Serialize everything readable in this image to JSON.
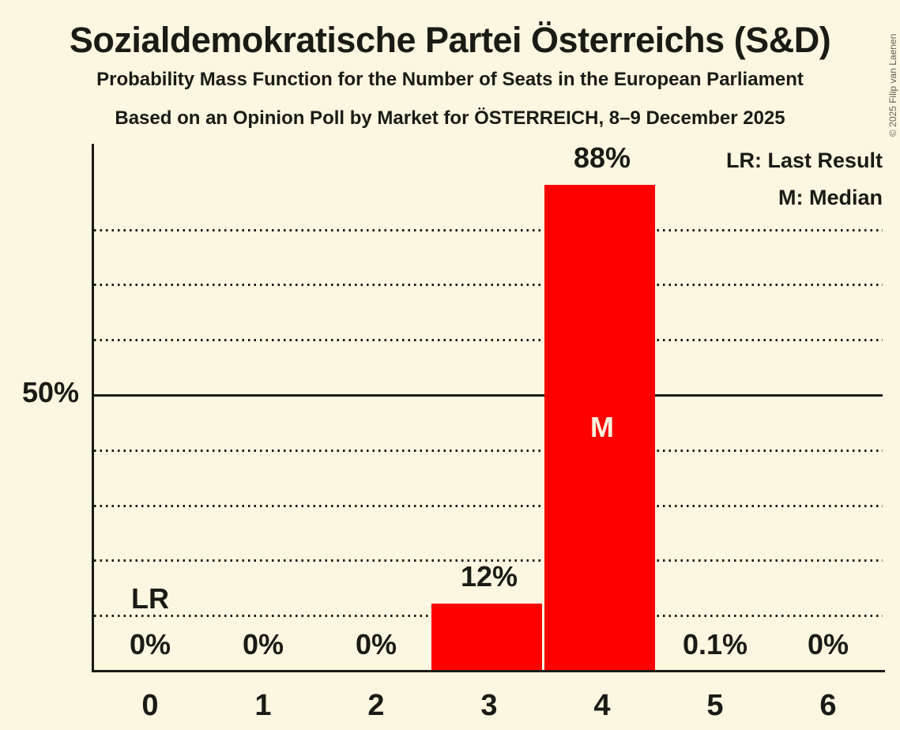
{
  "chart_data": {
    "type": "bar",
    "title": "Sozialdemokratische Partei Österreichs (S&D)",
    "subtitle1": "Probability Mass Function for the Number of Seats in the European Parliament",
    "subtitle2": "Based on an Opinion Poll by Market for ÖSTERREICH, 8–9 December 2025",
    "categories": [
      "0",
      "1",
      "2",
      "3",
      "4",
      "5",
      "6"
    ],
    "values": [
      0,
      0,
      0,
      12,
      88,
      0.1,
      0
    ],
    "value_labels": [
      "0%",
      "0%",
      "0%",
      "12%",
      "88%",
      "0.1%",
      "0%"
    ],
    "xlabel": "",
    "ylabel": "",
    "ylim": [
      0,
      95
    ],
    "y_tick": {
      "value": 50,
      "label": "50%"
    },
    "gridlines_pct": [
      10,
      20,
      30,
      40,
      50,
      60,
      70,
      80
    ],
    "solid_gridline_pct": 50,
    "grid": "horizontal-dotted",
    "legend_position": "top-right",
    "legend": {
      "lr": "LR: Last Result",
      "m": "M: Median"
    },
    "annotations": {
      "last_result_label": "LR",
      "last_result_seat": 0,
      "median_label": "M",
      "median_seat": 4
    },
    "colors": {
      "bar": "#ff0000",
      "background": "#fcf7e0",
      "text": "#1b1b16",
      "median_text": "#fcf7e0",
      "copyright_text": "#5f5e55"
    }
  },
  "copyright": "© 2025 Filip van Laenen"
}
